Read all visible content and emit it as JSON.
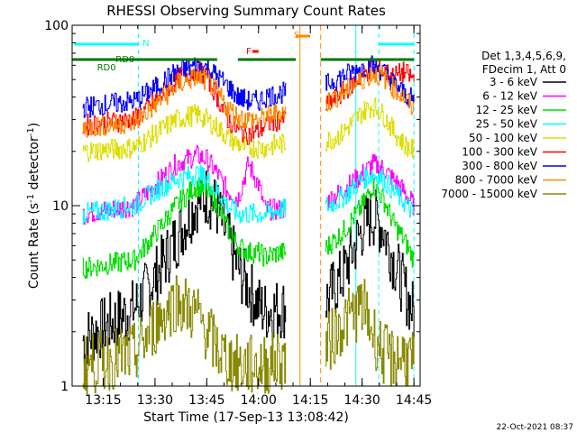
{
  "chart_data": {
    "type": "line",
    "title": "RHESSI Observing Summary Count Rates",
    "xlabel": "Start Time (17-Sep-13 13:08:42)",
    "ylabel": "Count Rate (s",
    "ylabel_sup": "-1",
    "ylabel_tail": " detector",
    "ylabel_end": ")",
    "yscale": "log",
    "ylim": [
      1,
      100
    ],
    "xlim_minutes": [
      13.1,
      14.78
    ],
    "x_ticks": [
      "13:15",
      "13:30",
      "13:45",
      "14:00",
      "14:15",
      "14:30",
      "14:45"
    ],
    "y_ticks": [
      "1",
      "10",
      "100"
    ],
    "legend_header": [
      "Det 1,3,4,5,6,9,",
      "FDecim 1, Att 0"
    ],
    "series": [
      {
        "name": "3 - 6 keV",
        "color": "#000000",
        "x": [
          13.15,
          13.4,
          13.5,
          13.6,
          13.7,
          13.75,
          13.8,
          13.85,
          13.9,
          13.95,
          14.0,
          14.03,
          14.1,
          14.3,
          14.4,
          14.5,
          14.55,
          14.6,
          14.65,
          14.7,
          14.75
        ],
        "y": [
          1.8,
          2.7,
          4.0,
          6.5,
          10.5,
          11.5,
          9.5,
          6.5,
          4.5,
          3.5,
          2.8,
          2.6,
          2.7,
          2.7,
          4.0,
          7.5,
          8.8,
          7.5,
          5.0,
          3.5,
          2.5
        ]
      },
      {
        "name": "6 - 12 keV",
        "color": "#ff00ff",
        "x": [
          13.15,
          13.4,
          13.5,
          13.6,
          13.7,
          13.75,
          13.8,
          13.85,
          13.9,
          13.95,
          14.0,
          14.03,
          14.1,
          14.3,
          14.4,
          14.5,
          14.55,
          14.6,
          14.65,
          14.7,
          14.75
        ],
        "y": [
          9.0,
          10,
          13,
          17,
          19,
          18,
          15,
          12,
          11,
          17,
          13,
          9.5,
          9.5,
          10,
          12,
          15,
          17,
          16,
          14,
          12,
          10
        ]
      },
      {
        "name": "12 - 25 keV",
        "color": "#00dd00",
        "x": [
          13.15,
          13.4,
          13.5,
          13.6,
          13.7,
          13.75,
          13.8,
          13.85,
          13.9,
          13.95,
          14.0,
          14.03,
          14.1,
          14.3,
          14.4,
          14.5,
          14.55,
          14.6,
          14.65,
          14.7,
          14.75
        ],
        "y": [
          4.5,
          5,
          7,
          10,
          13,
          12,
          10,
          7.5,
          6,
          5.5,
          5.5,
          5.2,
          5.5,
          5.5,
          7,
          10,
          13,
          11,
          8,
          6.5,
          5
        ]
      },
      {
        "name": "25 - 50 keV",
        "color": "#00ffff",
        "x": [
          13.15,
          13.4,
          13.5,
          13.6,
          13.7,
          13.75,
          13.8,
          13.85,
          13.9,
          13.95,
          14.0,
          14.03,
          14.1,
          14.3,
          14.4,
          14.5,
          14.55,
          14.6,
          14.65,
          14.7,
          14.75
        ],
        "y": [
          9,
          10,
          12,
          14,
          15,
          14,
          12,
          10,
          9,
          9,
          9,
          9,
          9.5,
          9.5,
          11,
          14,
          15,
          14,
          12,
          10.5,
          9
        ]
      },
      {
        "name": "50 - 100 keV",
        "color": "#dddd00",
        "x": [
          13.15,
          13.4,
          13.5,
          13.6,
          13.7,
          13.75,
          13.8,
          13.85,
          13.9,
          13.95,
          14.0,
          14.03,
          14.1,
          14.3,
          14.4,
          14.5,
          14.55,
          14.6,
          14.65,
          14.7,
          14.75
        ],
        "y": [
          20,
          21,
          25,
          30,
          32,
          30,
          27,
          24,
          22,
          21,
          21,
          21,
          22,
          22,
          25,
          33,
          36,
          32,
          26,
          22,
          20
        ]
      },
      {
        "name": "100 - 300 keV",
        "color": "#ff0000",
        "x": [
          13.15,
          13.4,
          13.5,
          13.6,
          13.7,
          13.75,
          13.8,
          13.85,
          13.9,
          13.95,
          14.0,
          14.03,
          14.1,
          14.3,
          14.4,
          14.5,
          14.55,
          14.6,
          14.65,
          14.7,
          14.75
        ],
        "y": [
          28,
          30,
          38,
          50,
          57,
          52,
          40,
          30,
          26,
          25,
          26,
          28,
          30,
          34,
          42,
          53,
          58,
          55,
          52,
          55,
          50
        ]
      },
      {
        "name": "300 - 800 keV",
        "color": "#0000ff",
        "x": [
          13.15,
          13.4,
          13.5,
          13.6,
          13.7,
          13.75,
          13.8,
          13.85,
          13.9,
          13.95,
          14.0,
          14.03,
          14.1,
          14.3,
          14.4,
          14.5,
          14.55,
          14.6,
          14.65,
          14.7,
          14.75
        ],
        "y": [
          35,
          38,
          45,
          55,
          60,
          58,
          52,
          46,
          40,
          38,
          38,
          40,
          42,
          45,
          52,
          58,
          60,
          56,
          48,
          42,
          38
        ]
      },
      {
        "name": "800 - 7000 keV",
        "color": "#ff8800",
        "x": [
          13.15,
          13.4,
          13.5,
          13.6,
          13.7,
          13.75,
          13.8,
          13.85,
          13.9,
          13.95,
          14.0,
          14.03,
          14.1,
          14.3,
          14.4,
          14.5,
          14.55,
          14.6,
          14.65,
          14.7,
          14.75
        ],
        "y": [
          27,
          29,
          36,
          46,
          52,
          49,
          42,
          35,
          31,
          30,
          30,
          31,
          33,
          35,
          42,
          50,
          54,
          52,
          45,
          40,
          34
        ]
      },
      {
        "name": "7000 - 15000 keV",
        "color": "#888800",
        "x": [
          13.15,
          13.4,
          13.5,
          13.6,
          13.7,
          13.75,
          13.8,
          13.85,
          13.9,
          13.95,
          14.0,
          14.03,
          14.1,
          14.3,
          14.4,
          14.5,
          14.55,
          14.6,
          14.65,
          14.7,
          14.75
        ],
        "y": [
          1.3,
          1.5,
          2.2,
          3.0,
          2.5,
          2.0,
          1.6,
          1.4,
          1.3,
          1.3,
          1.3,
          1.3,
          1.4,
          1.5,
          2.2,
          2.8,
          2.0,
          1.5,
          1.4,
          1.5,
          1.3
        ]
      }
    ],
    "flags": [
      {
        "label": "N",
        "color": "#00ffff"
      },
      {
        "label": "RD0",
        "color": "#007700"
      },
      {
        "label": "RD0",
        "color": "#007700"
      },
      {
        "label": "F",
        "color": "#ff0000"
      },
      {
        "label": "S",
        "color": "#ff8800"
      }
    ],
    "footer_date": "22-Oct-2021 08:37"
  }
}
